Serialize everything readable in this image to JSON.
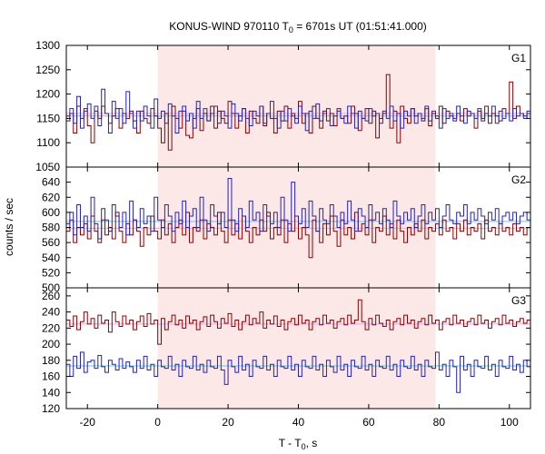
{
  "chart_data": {
    "type": "line",
    "title": {
      "main": "KONUS-WIND 970110 T",
      "sub": "0",
      "rest": " = 6701s UT (01:51:41.000)"
    },
    "xlabel": {
      "main": "T - T",
      "sub": "0",
      "rest": ", s"
    },
    "ylabel": "counts / sec",
    "xlim": [
      -26,
      106
    ],
    "xticks": [
      -20,
      0,
      20,
      40,
      60,
      80,
      100
    ],
    "shaded_interval": [
      0,
      79
    ],
    "colors": {
      "shade": "#fde8e8",
      "red_series": "#8b0000",
      "blue_series": "#2222bb",
      "red_bg": "#e8a8e8",
      "blue_bg": "#66c8f0"
    },
    "panels": [
      {
        "label": "G1",
        "ylim": [
          1050,
          1300
        ],
        "yticks": [
          1050,
          1100,
          1150,
          1200,
          1250,
          1300
        ],
        "background_levels": {
          "red": 1160,
          "blue": 1155
        },
        "series": [
          {
            "color_key": "red_series",
            "values": [
              1145,
              1160,
              1120,
              1175,
              1150,
              1170,
              1135,
              1100,
              1165,
              1150,
              1175,
              1160,
              1140,
              1155,
              1170,
              1130,
              1160,
              1150,
              1165,
              1145,
              1120,
              1165,
              1150,
              1140,
              1170,
              1155,
              1130,
              1100,
              1160,
              1085,
              1175,
              1150,
              1130,
              1165,
              1115,
              1110,
              1150,
              1170,
              1125,
              1160,
              1145,
              1175,
              1130,
              1165,
              1150,
              1140,
              1185,
              1160,
              1130,
              1155,
              1170,
              1120,
              1165,
              1150,
              1140,
              1175,
              1135,
              1160,
              1150,
              1120,
              1165,
              1145,
              1175,
              1130,
              1160,
              1150,
              1185,
              1140,
              1160,
              1120,
              1175,
              1150,
              1130,
              1165,
              1145,
              1160,
              1135,
              1170,
              1150,
              1155,
              1140,
              1175,
              1160,
              1125,
              1150,
              1170,
              1140,
              1165,
              1110,
              1150,
              1160,
              1240,
              1130,
              1165,
              1100,
              1175,
              1150,
              1140,
              1170,
              1155,
              1160,
              1145,
              1170,
              1135,
              1160,
              1150,
              1175,
              1140,
              1165,
              1155,
              1150,
              1160,
              1145,
              1170,
              1155,
              1160,
              1130,
              1165,
              1150,
              1175,
              1140,
              1160,
              1155,
              1145,
              1170,
              1160,
              1225,
              1150,
              1175,
              1160,
              1155,
              1160
            ]
          },
          {
            "color_key": "blue_series",
            "values": [
              1155,
              1170,
              1140,
              1195,
              1130,
              1165,
              1180,
              1150,
              1175,
              1135,
              1210,
              1160,
              1120,
              1185,
              1150,
              1170,
              1140,
              1205,
              1160,
              1130,
              1165,
              1145,
              1175,
              1155,
              1130,
              1190,
              1150,
              1165,
              1140,
              1180,
              1155,
              1120,
              1165,
              1175,
              1145,
              1160,
              1130,
              1185,
              1150,
              1170,
              1145,
              1160,
              1175,
              1140,
              1165,
              1155,
              1130,
              1180,
              1160,
              1145,
              1170,
              1150,
              1135,
              1165,
              1155,
              1175,
              1140,
              1160,
              1185,
              1150,
              1130,
              1165,
              1145,
              1170,
              1155,
              1140,
              1175,
              1160,
              1125,
              1165,
              1150,
              1180,
              1145,
              1160,
              1170,
              1135,
              1155,
              1165,
              1150,
              1140,
              1175,
              1160,
              1130,
              1165,
              1150,
              1145,
              1170,
              1155,
              1160,
              1140,
              1165,
              1150,
              1175,
              1145,
              1160,
              1130,
              1165,
              1155,
              1170,
              1140,
              1160,
              1150,
              1175,
              1145,
              1165,
              1155,
              1130,
              1170,
              1150,
              1160,
              1145,
              1175,
              1155,
              1140,
              1165,
              1160,
              1150,
              1170,
              1145,
              1160,
              1155,
              1175,
              1140,
              1165,
              1150,
              1160,
              1145,
              1170,
              1155,
              1160,
              1150,
              1165
            ]
          }
        ]
      },
      {
        "label": "G2",
        "ylim": [
          500,
          660
        ],
        "yticks": [
          500,
          520,
          540,
          560,
          580,
          600,
          620,
          640
        ],
        "background_levels": {
          "red": 579,
          "blue": 588
        },
        "series": [
          {
            "color_key": "red_series",
            "values": [
              575,
              590,
              560,
              580,
              570,
              585,
              565,
              595,
              575,
              560,
              590,
              570,
              580,
              565,
              600,
              575,
              560,
              585,
              570,
              590,
              575,
              555,
              580,
              570,
              595,
              575,
              565,
              590,
              570,
              585,
              560,
              580,
              590,
              570,
              600,
              560,
              580,
              575,
              590,
              565,
              585,
              580,
              570,
              600,
              575,
              560,
              590,
              570,
              585,
              565,
              595,
              575,
              560,
              580,
              570,
              590,
              575,
              600,
              565,
              580,
              570,
              590,
              560,
              585,
              575,
              595,
              565,
              580,
              570,
              540,
              590,
              575,
              560,
              585,
              570,
              595,
              575,
              555,
              590,
              570,
              580,
              565,
              600,
              575,
              585,
              570,
              590,
              560,
              580,
              575,
              595,
              570,
              585,
              565,
              590,
              575,
              560,
              580,
              570,
              585,
              575,
              590,
              565,
              580,
              575,
              585,
              570,
              590,
              575,
              580,
              565,
              585,
              575,
              590,
              570,
              580,
              575,
              585,
              565,
              590,
              575,
              580,
              570,
              585,
              575,
              580,
              570,
              585,
              575,
              580,
              570,
              580
            ]
          },
          {
            "color_key": "blue_series",
            "values": [
              585,
              600,
              570,
              610,
              580,
              595,
              575,
              620,
              585,
              565,
              605,
              590,
              575,
              610,
              595,
              580,
              600,
              570,
              615,
              590,
              580,
              605,
              585,
              595,
              575,
              620,
              590,
              580,
              610,
              595,
              575,
              600,
              585,
              615,
              580,
              595,
              605,
              580,
              620,
              590,
              575,
              610,
              595,
              585,
              600,
              580,
              645,
              590,
              575,
              605,
              595,
              580,
              615,
              590,
              600,
              575,
              610,
              595,
              585,
              600,
              580,
              620,
              590,
              575,
              640,
              595,
              585,
              605,
              580,
              615,
              595,
              575,
              605,
              590,
              585,
              610,
              595,
              580,
              600,
              585,
              615,
              590,
              575,
              605,
              595,
              580,
              610,
              590,
              600,
              585,
              605,
              590,
              580,
              615,
              595,
              585,
              600,
              590,
              605,
              580,
              595,
              610,
              585,
              600,
              590,
              605,
              580,
              595,
              610,
              590,
              585,
              600,
              595,
              610,
              585,
              600,
              590,
              605,
              595,
              585,
              600,
              590,
              605,
              585,
              595,
              600,
              590,
              600,
              585,
              595,
              600,
              590
            ]
          }
        ]
      },
      {
        "label": "G3",
        "ylim": [
          120,
          270
        ],
        "yticks": [
          120,
          140,
          160,
          180,
          200,
          220,
          240,
          260
        ],
        "background_levels": {
          "red": 225,
          "blue": 173
        },
        "series": [
          {
            "color_key": "red_series",
            "values": [
              230,
              222,
              235,
              218,
              228,
              240,
              225,
              232,
              220,
              236,
              226,
              230,
              215,
              240,
              228,
              222,
              235,
              225,
              230,
              218,
              228,
              235,
              222,
              238,
              225,
              230,
              200,
              232,
              218,
              228,
              236,
              224,
              230,
              220,
              235,
              226,
              230,
              218,
              228,
              234,
              222,
              236,
              228,
              220,
              232,
              226,
              238,
              222,
              230,
              218,
              228,
              236,
              224,
              232,
              226,
              240,
              220,
              230,
              225,
              235,
              222,
              230,
              218,
              228,
              232,
              224,
              236,
              226,
              230,
              218,
              228,
              232,
              224,
              236,
              226,
              230,
              220,
              228,
              232,
              224,
              236,
              226,
              230,
              255,
              228,
              218,
              232,
              224,
              236,
              226,
              222,
              230,
              218,
              228,
              232,
              224,
              236,
              226,
              230,
              220,
              228,
              232,
              224,
              236,
              226,
              230,
              218,
              228,
              232,
              224,
              236,
              226,
              230,
              222,
              228,
              232,
              224,
              236,
              226,
              230,
              220,
              228,
              232,
              224,
              236,
              226,
              230,
              222,
              228,
              232,
              226,
              230
            ]
          },
          {
            "color_key": "blue_series",
            "values": [
              175,
              160,
              185,
              170,
              190,
              165,
              178,
              180,
              170,
              186,
              172,
              165,
              180,
              175,
              168,
              182,
              170,
              178,
              172,
              165,
              180,
              170,
              185,
              168,
              175,
              160,
              180,
              172,
              170,
              185,
              168,
              175,
              160,
              180,
              172,
              170,
              185,
              168,
              175,
              165,
              180,
              172,
              170,
              185,
              168,
              150,
              180,
              172,
              165,
              185,
              168,
              175,
              160,
              180,
              172,
              170,
              185,
              168,
              175,
              160,
              180,
              172,
              170,
              185,
              168,
              175,
              160,
              180,
              172,
              170,
              185,
              168,
              175,
              160,
              180,
              172,
              165,
              185,
              168,
              175,
              160,
              180,
              172,
              170,
              185,
              168,
              175,
              160,
              180,
              172,
              170,
              185,
              168,
              175,
              160,
              180,
              172,
              170,
              185,
              168,
              175,
              160,
              180,
              172,
              170,
              190,
              168,
              175,
              160,
              180,
              172,
              140,
              185,
              168,
              175,
              160,
              180,
              172,
              170,
              185,
              168,
              175,
              160,
              180,
              172,
              170,
              185,
              168,
              175,
              165,
              180,
              172
            ]
          }
        ]
      }
    ]
  }
}
